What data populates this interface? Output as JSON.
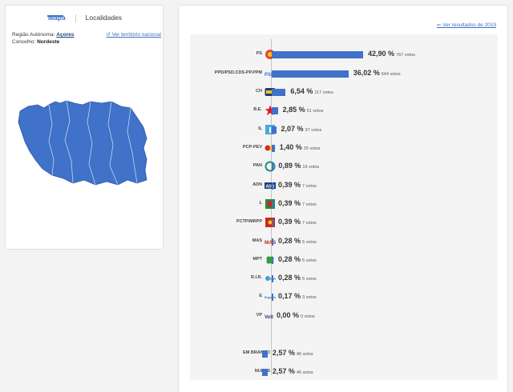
{
  "tabs": {
    "map": "Mapa",
    "localities": "Localidades"
  },
  "region": {
    "label": "Região Autónoma:",
    "value": "Açores"
  },
  "municipality": {
    "label": "Concelho:",
    "value": "Nordeste"
  },
  "national_link": "Ver território nacional",
  "previous_results_link": "Ver resultados de 2019",
  "results": [
    {
      "party": "PS",
      "percent": "42,90 %",
      "votes": "767 votos",
      "share": 42.9,
      "logo": "ps-logo-icon"
    },
    {
      "party": "PPD/PSD.CDS-PP.PPM",
      "percent": "36,02 %",
      "votes": "644 votos",
      "share": 36.02,
      "logo": "ppd-psd-cds-ppm-logo-icon"
    },
    {
      "party": "CH",
      "percent": "6,54 %",
      "votes": "117 votos",
      "share": 6.54,
      "logo": "chega-logo-icon"
    },
    {
      "party": "B.E.",
      "percent": "2,85 %",
      "votes": "51 votos",
      "share": 2.85,
      "logo": "be-star-logo-icon"
    },
    {
      "party": "IL",
      "percent": "2,07 %",
      "votes": "37 votos",
      "share": 2.07,
      "logo": "il-logo-icon"
    },
    {
      "party": "PCP-PEV",
      "percent": "1,40 %",
      "votes": "25 votos",
      "share": 1.4,
      "logo": "pcp-pev-logo-icon"
    },
    {
      "party": "PAN",
      "percent": "0,89 %",
      "votes": "16 votos",
      "share": 0.89,
      "logo": "pan-logo-icon"
    },
    {
      "party": "ADN",
      "percent": "0,39 %",
      "votes": "7 votos",
      "share": 0.39,
      "logo": "adn-logo-icon"
    },
    {
      "party": "L",
      "percent": "0,39 %",
      "votes": "7 votos",
      "share": 0.39,
      "logo": "livre-logo-icon"
    },
    {
      "party": "PCTP/MRPP",
      "percent": "0,39 %",
      "votes": "7 votos",
      "share": 0.39,
      "logo": "pctp-mrpp-logo-icon"
    },
    {
      "party": "MAS",
      "percent": "0,28 %",
      "votes": "5 votos",
      "share": 0.28,
      "logo": "mas-logo-icon"
    },
    {
      "party": "MPT",
      "percent": "0,28 %",
      "votes": "5 votos",
      "share": 0.28,
      "logo": "mpt-clover-logo-icon"
    },
    {
      "party": "R.I.R.",
      "percent": "0,28 %",
      "votes": "5 votos",
      "share": 0.28,
      "logo": "rir-logo-icon"
    },
    {
      "party": "E",
      "percent": "0,17 %",
      "votes": "3 votos",
      "share": 0.17,
      "logo": "ergue-te-logo-icon"
    },
    {
      "party": "VP",
      "percent": "0,00 %",
      "votes": "0 votos",
      "share": 0.0,
      "logo": "volt-logo-icon"
    },
    {
      "party": "EM BRANCO",
      "percent": "2,57 %",
      "votes": "46 votos",
      "share": 2.57,
      "logo": ""
    },
    {
      "party": "NULOS",
      "percent": "2,57 %",
      "votes": "46 votos",
      "share": 2.57,
      "logo": ""
    }
  ],
  "logo_texts": {
    "ppd": "PSD",
    "adn": "ADN",
    "mas": "MAS",
    "rir": "RIR",
    "e": "Ergue-te",
    "vp": "Volt"
  },
  "colors": {
    "accent": "#3a72c4",
    "bar": "#3f72c8",
    "map_fill": "#3f72c8",
    "ps": "#e8452a",
    "chega": "#1c3f7a",
    "be": "#d81e2a",
    "il": "#4aa8e0",
    "pan": "#1d8c8c",
    "livre": "#2a8a3c",
    "pctp": "#c8281e",
    "mpt": "#2e9e38",
    "volt": "#502379"
  }
}
